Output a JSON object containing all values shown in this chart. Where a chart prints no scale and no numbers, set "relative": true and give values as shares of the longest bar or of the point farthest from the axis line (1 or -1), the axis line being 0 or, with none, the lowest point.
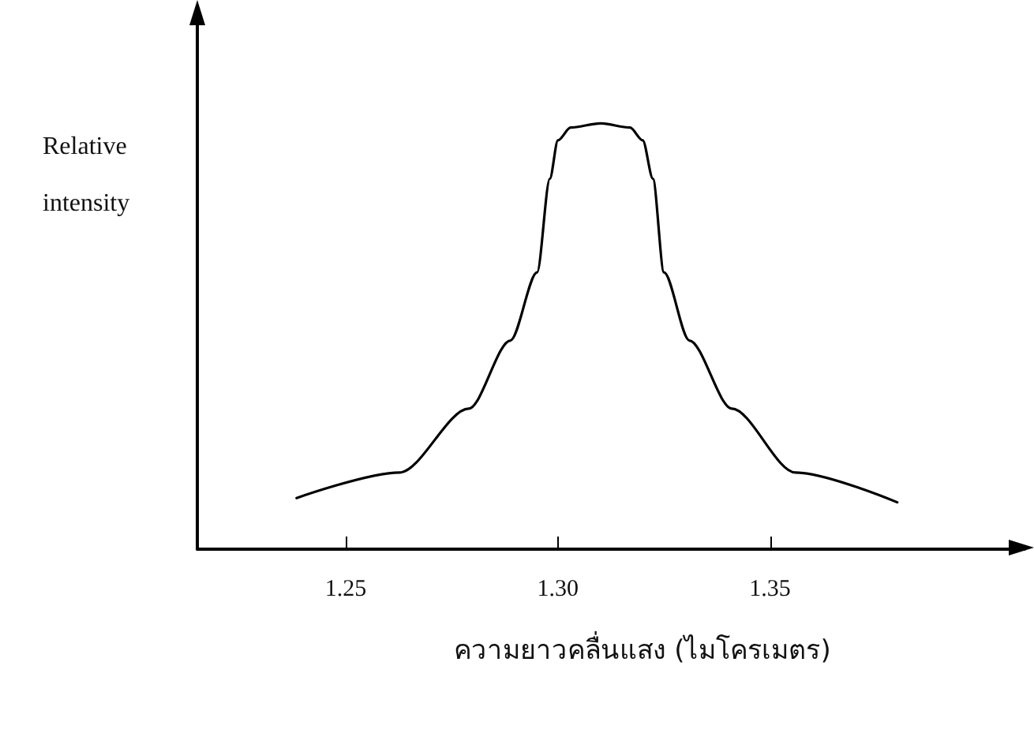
{
  "chart_data": {
    "type": "line",
    "relative": true,
    "ylabel": "Relative intensity",
    "xlabel": "ความยาวคลื่นแสง (ไมโครเมตร)",
    "xlim": [
      1.215,
      1.41
    ],
    "xticks": [
      1.25,
      {
        "value": 1.3,
        "label": "1.30"
      },
      1.35
    ],
    "grid": false,
    "marker": "none",
    "line_style": "solid",
    "series": [
      {
        "color": "#000000",
        "x": [
          1.2384,
          1.2627,
          1.279,
          1.2888,
          1.2951,
          1.2981,
          1.3,
          1.303,
          1.31,
          1.317,
          1.32,
          1.3224,
          1.325,
          1.331,
          1.341,
          1.356,
          1.38
        ],
        "values": [
          0.12,
          0.18,
          0.33,
          0.49,
          0.65,
          0.87,
          0.96,
          0.99,
          1.0,
          0.99,
          0.96,
          0.87,
          0.65,
          0.49,
          0.33,
          0.18,
          0.11
        ]
      }
    ]
  }
}
